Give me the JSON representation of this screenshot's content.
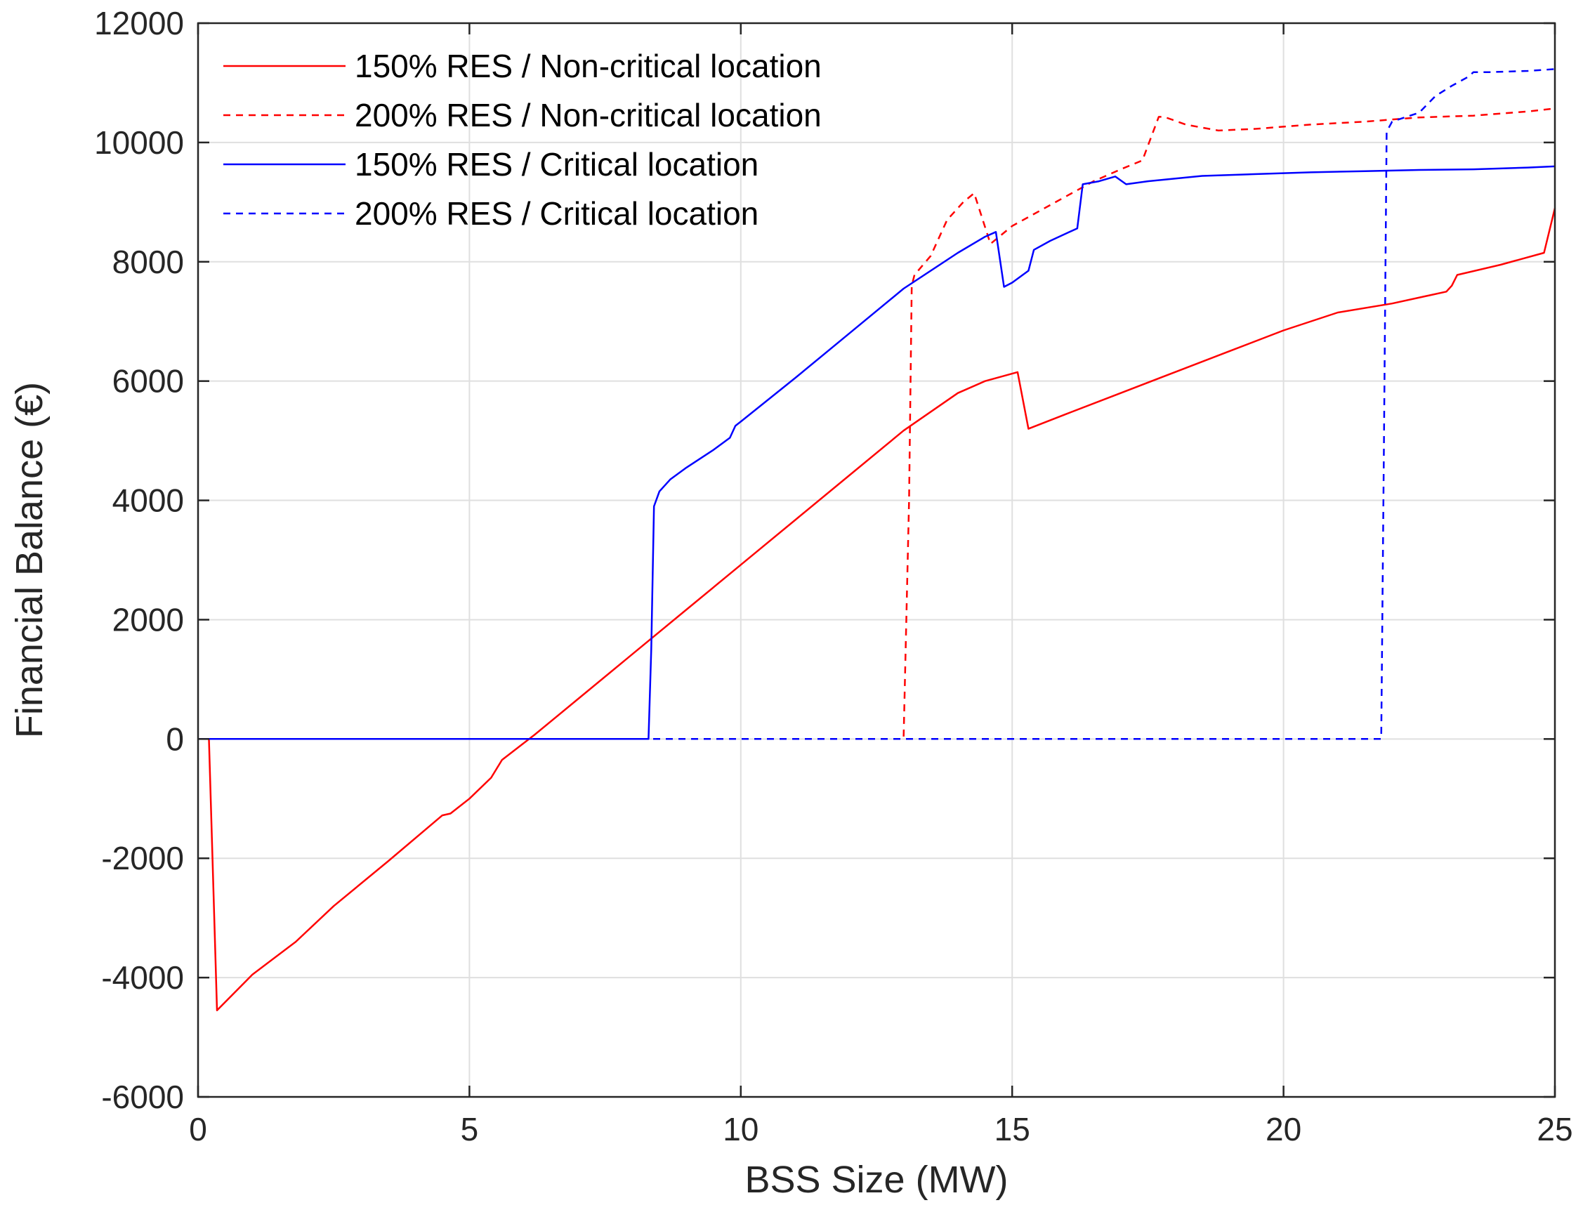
{
  "chart_data": {
    "type": "line",
    "title": "",
    "xlabel": "BSS Size (MW)",
    "ylabel": "Financial Balance (€)",
    "xlim": [
      0,
      25
    ],
    "ylim": [
      -6000,
      12000
    ],
    "xticks": [
      0,
      5,
      10,
      15,
      20,
      25
    ],
    "yticks": [
      -6000,
      -4000,
      -2000,
      0,
      2000,
      4000,
      6000,
      8000,
      10000,
      12000
    ],
    "xtick_labels": [
      "0",
      "5",
      "10",
      "15",
      "20",
      "25"
    ],
    "ytick_labels": [
      "-6000",
      "-4000",
      "-2000",
      "0",
      "2000",
      "4000",
      "6000",
      "8000",
      "10000",
      "12000"
    ],
    "grid": true,
    "legend_position": "top-left",
    "series": [
      {
        "name": "150% RES / Non-critical location",
        "color": "#ff0000",
        "dash": "solid",
        "x": [
          0,
          0.2,
          0.25,
          0.35,
          1.0,
          1.8,
          2.5,
          3.5,
          4.5,
          4.65,
          5.0,
          5.4,
          5.6,
          6.0,
          6.2,
          7.0,
          8.0,
          9.0,
          10.0,
          11.0,
          12.0,
          13.0,
          14.0,
          14.5,
          15.1,
          15.3,
          16.0,
          17.0,
          18.0,
          19.0,
          20.0,
          21.0,
          22.0,
          23.0,
          23.1,
          23.2,
          24.0,
          24.8,
          25.0
        ],
        "y": [
          0,
          0,
          -1500,
          -4550,
          -3950,
          -3400,
          -2800,
          -2050,
          -1280,
          -1250,
          -1000,
          -650,
          -350,
          -70,
          70,
          670,
          1420,
          2170,
          2920,
          3670,
          4420,
          5170,
          5800,
          6000,
          6150,
          5200,
          5450,
          5800,
          6150,
          6500,
          6850,
          7150,
          7300,
          7500,
          7600,
          7780,
          7950,
          8150,
          8900
        ]
      },
      {
        "name": "200% RES / Non-critical location",
        "color": "#ff0000",
        "dash": "dashed",
        "x": [
          0,
          13.0,
          13.1,
          13.15,
          13.2,
          13.5,
          13.8,
          14.1,
          14.3,
          14.6,
          15.0,
          15.5,
          16.0,
          16.5,
          17.0,
          17.4,
          17.7,
          17.8,
          18.2,
          18.5,
          18.8,
          19.5,
          20.5,
          21.5,
          22.5,
          23.5,
          24.5,
          25.0
        ],
        "y": [
          0,
          0,
          4000,
          7600,
          7780,
          8100,
          8700,
          9000,
          9150,
          8300,
          8600,
          8850,
          9100,
          9350,
          9550,
          9700,
          10430,
          10430,
          10300,
          10250,
          10200,
          10230,
          10300,
          10350,
          10420,
          10450,
          10520,
          10570
        ]
      },
      {
        "name": "150% RES / Critical location",
        "color": "#0000ff",
        "dash": "solid",
        "x": [
          0,
          8.3,
          8.35,
          8.4,
          8.5,
          8.7,
          9.0,
          9.5,
          9.8,
          9.85,
          9.9,
          10.0,
          11.0,
          12.0,
          13.0,
          14.0,
          14.5,
          14.7,
          14.85,
          15.0,
          15.3,
          15.4,
          15.7,
          16.2,
          16.3,
          16.6,
          16.9,
          17.1,
          17.5,
          18.5,
          19.5,
          20.5,
          21.5,
          22.5,
          23.5,
          24.5,
          25.0
        ],
        "y": [
          0,
          0,
          1500,
          3900,
          4150,
          4350,
          4550,
          4850,
          5050,
          5150,
          5250,
          5320,
          6050,
          6800,
          7550,
          8150,
          8420,
          8500,
          7580,
          7650,
          7850,
          8200,
          8350,
          8560,
          9300,
          9350,
          9430,
          9300,
          9350,
          9440,
          9470,
          9500,
          9520,
          9540,
          9550,
          9580,
          9600
        ]
      },
      {
        "name": "200% RES / Critical location",
        "color": "#0000ff",
        "dash": "dashed",
        "x": [
          0,
          21.8,
          21.85,
          21.9,
          22.0,
          22.5,
          22.8,
          23.1,
          23.4,
          23.5,
          23.8,
          24.5,
          25.0
        ],
        "y": [
          0,
          0,
          5000,
          10180,
          10350,
          10500,
          10780,
          10950,
          11100,
          11180,
          11180,
          11200,
          11230
        ]
      }
    ]
  }
}
